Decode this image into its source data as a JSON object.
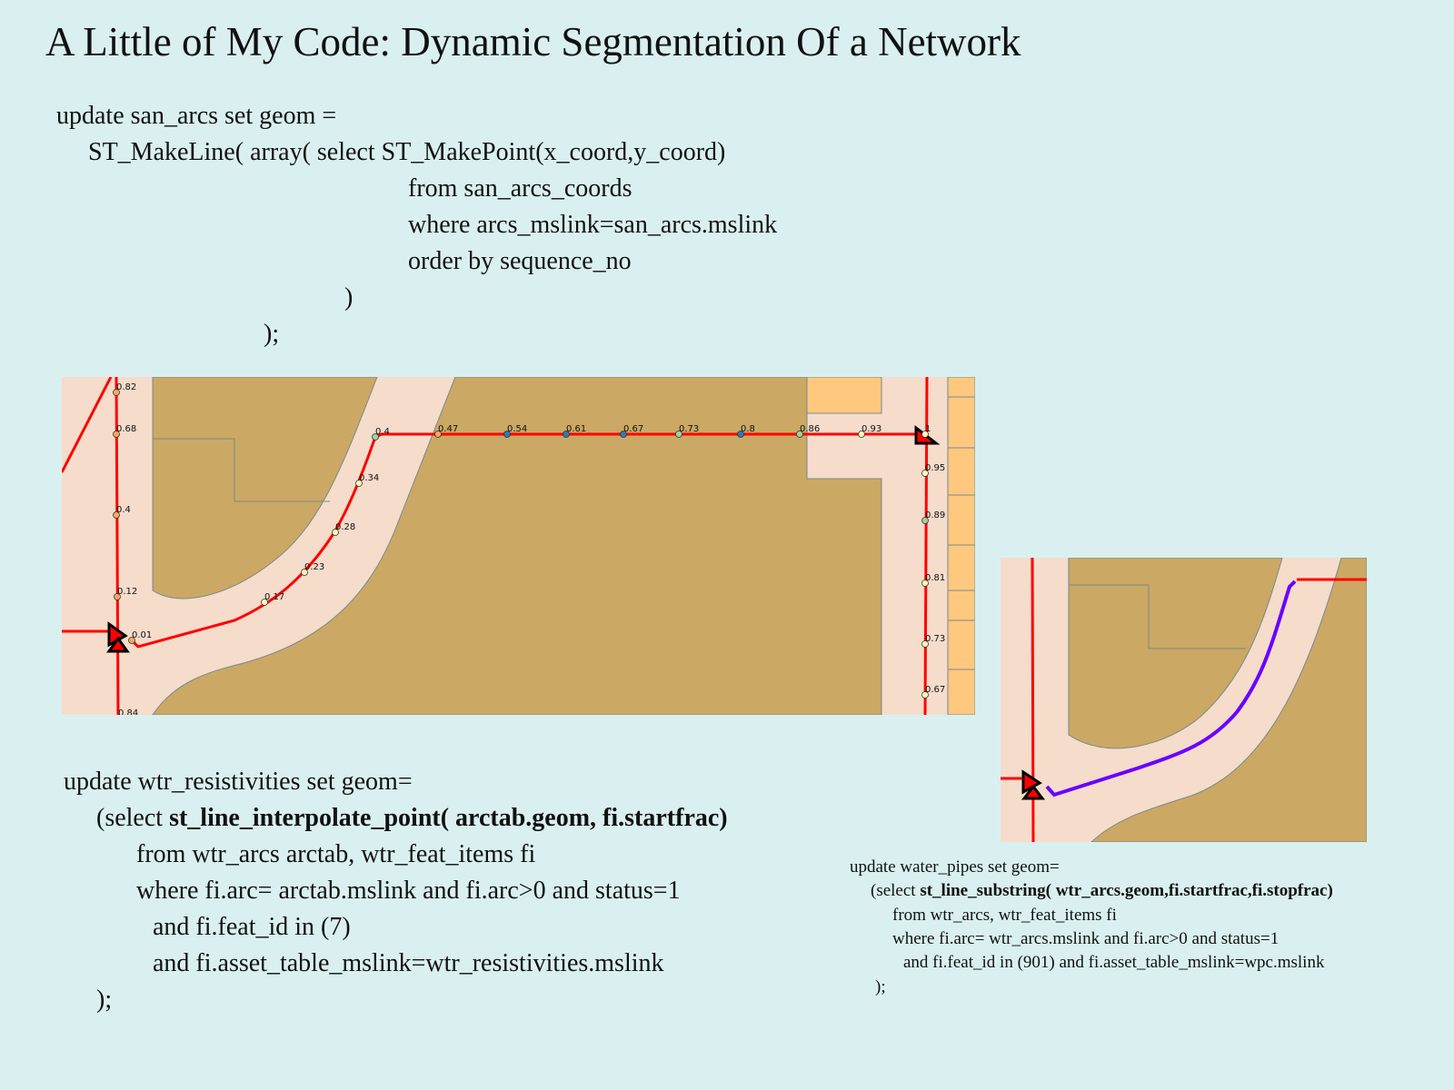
{
  "title": "A Little of My Code: Dynamic Segmentation Of a Network",
  "code_block_1": [
    "update san_arcs set geom =",
    "ST_MakeLine( array( select ST_MakePoint(x_coord,y_coord)",
    "from san_arcs_coords",
    "where arcs_mslink=san_arcs.mslink",
    "order by sequence_no",
    ")",
    ");"
  ],
  "code_block_2": {
    "line1": "update wtr_resistivities set geom=",
    "line2_pre": "(select ",
    "line2_bold": "st_line_interpolate_point( arctab.geom, fi.startfrac)",
    "line3": "from wtr_arcs arctab, wtr_feat_items fi",
    "line4": "where fi.arc= arctab.mslink and fi.arc>0 and status=1",
    "line5": "and fi.feat_id in (7)",
    "line6": "and fi.asset_table_mslink=wtr_resistivities.mslink",
    "line7": ");"
  },
  "code_block_3": {
    "line1": "update water_pipes set geom=",
    "line2_pre": "(select ",
    "line2_bold": "st_line_substring( wtr_arcs.geom,fi.startfrac,fi.stopfrac)",
    "line3": "from wtr_arcs, wtr_feat_items fi",
    "line4": "where fi.arc= wtr_arcs.mslink and fi.arc>0 and status=1",
    "line5": "and fi.feat_id in (901) and fi.asset_table_mslink=wpc.mslink",
    "line6": ");"
  },
  "map_main": {
    "labels": [
      "0.82",
      "0.68",
      "0.4",
      "0.12",
      "0.01",
      "0.84",
      "0.17",
      "0.23",
      "0.28",
      "0.34",
      "0.4",
      "0.47",
      "0.54",
      "0.61",
      "0.67",
      "0.73",
      "0.8",
      "0.86",
      "0.93",
      "1",
      "0.95",
      "0.89",
      "0.81",
      "0.73",
      "0.67"
    ],
    "point_colors": [
      "orange",
      "orange",
      "orange",
      "orange",
      "orange",
      "none",
      "yellow",
      "yellow",
      "yellow",
      "yellow",
      "green",
      "orange",
      "blue",
      "blue",
      "blue",
      "green",
      "blue",
      "green",
      "yellow",
      "yellow",
      "yellow",
      "green",
      "yellow",
      "yellow",
      "yellow"
    ]
  },
  "colors": {
    "background": "#daf0f0",
    "road": "#f5dccb",
    "parcel": "#cba864",
    "parcel_highlight": "#fec97f",
    "network_line": "#ff0000",
    "segment_line": "#6a00ff",
    "point_orange": "#f4a95c",
    "point_yellow": "#fdfcc0",
    "point_green": "#9fd49b",
    "point_blue": "#2b7bb9"
  }
}
